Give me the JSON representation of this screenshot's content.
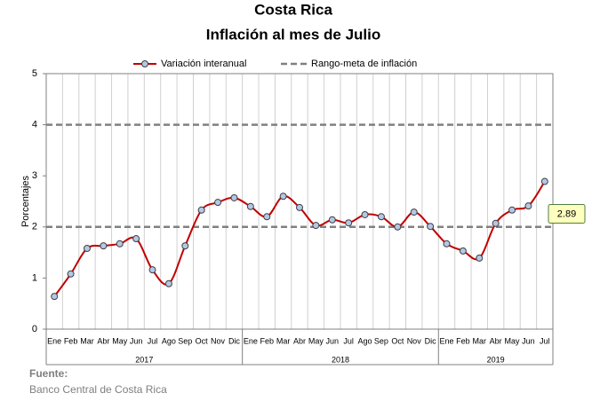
{
  "chart_data": {
    "type": "line",
    "title": "Costa Rica",
    "subtitle": "Inflación al mes de Julio",
    "y_label": "Porcentajes",
    "groups": [
      {
        "name": "2017",
        "categories": [
          "Ene",
          "Feb",
          "Mar",
          "Abr",
          "May",
          "Jun",
          "Jul",
          "Ago",
          "Sep",
          "Oct",
          "Nov",
          "Dic"
        ]
      },
      {
        "name": "2018",
        "categories": [
          "Ene",
          "Feb",
          "Mar",
          "Abr",
          "May",
          "Jun",
          "Jul",
          "Ago",
          "Sep",
          "Oct",
          "Nov",
          "Dic"
        ]
      },
      {
        "name": "2019",
        "categories": [
          "Ene",
          "Feb",
          "Mar",
          "Abr",
          "May",
          "Jun",
          "Jul"
        ]
      }
    ],
    "series": [
      {
        "name": "Variación interanual",
        "color": "#c00000",
        "marker_color": "#b4c7e7",
        "values": [
          0.64,
          1.08,
          1.58,
          1.63,
          1.67,
          1.77,
          1.16,
          0.89,
          1.63,
          2.33,
          2.48,
          2.57,
          2.4,
          2.2,
          2.6,
          2.38,
          2.03,
          2.14,
          2.08,
          2.24,
          2.2,
          2.0,
          2.29,
          2.01,
          1.67,
          1.53,
          1.39,
          2.07,
          2.33,
          2.41,
          2.89
        ]
      }
    ],
    "reference_lines": {
      "name": "Rango-meta de inflación",
      "color": "#808080",
      "values": [
        2,
        4
      ]
    },
    "last_value_label": "2.89",
    "ylim": [
      0,
      5
    ],
    "yticks": [
      0,
      1,
      2,
      3,
      4,
      5
    ],
    "grid": "x",
    "source_title": "Fuente:",
    "source": "Banco Central de Costa Rica"
  }
}
